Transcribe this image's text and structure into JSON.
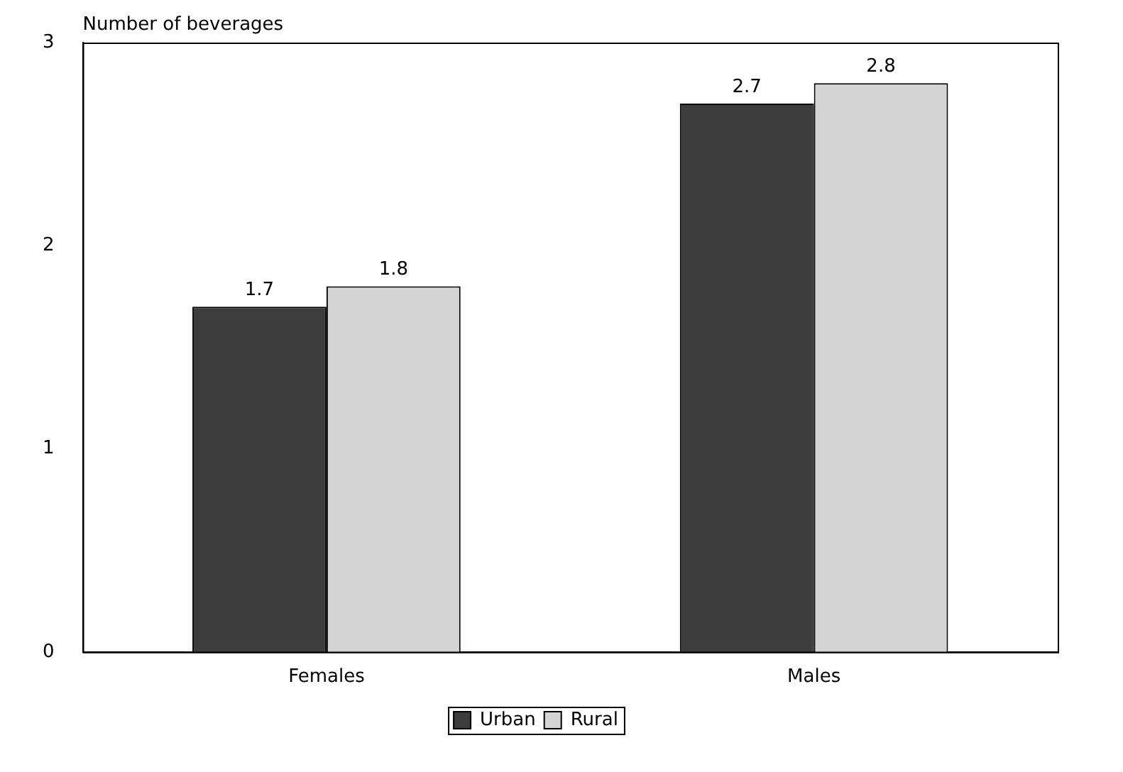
{
  "chart_data": {
    "type": "bar",
    "ylabel": "Number of beverages",
    "categories": [
      "Females",
      "Males"
    ],
    "series": [
      {
        "name": "Urban",
        "color": "#3c3c3c",
        "values": [
          1.7,
          2.7
        ]
      },
      {
        "name": "Rural",
        "color": "#d4d4d4",
        "values": [
          1.8,
          2.8
        ]
      }
    ],
    "ylim": [
      0,
      3
    ],
    "yticks": [
      0,
      1,
      2,
      3
    ],
    "grid": false,
    "legend": "bottom",
    "data_labels": true
  }
}
